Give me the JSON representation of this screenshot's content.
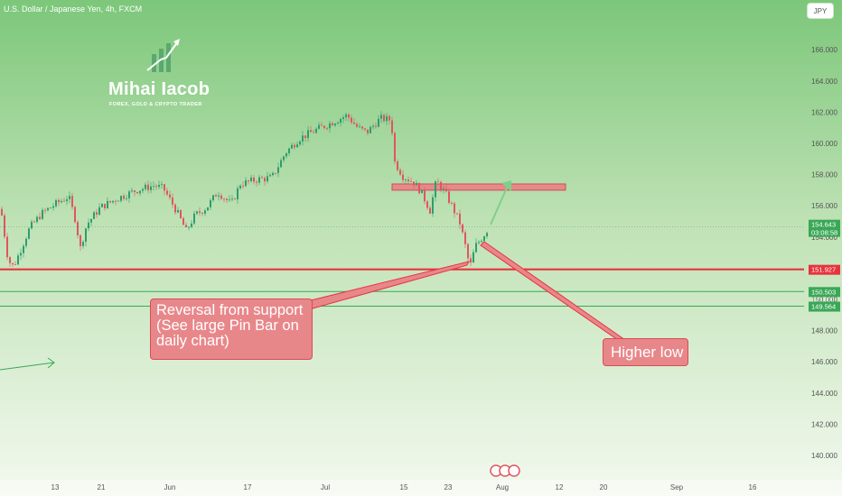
{
  "header": {
    "title": "U.S. Dollar / Japanese Yen, 4h, FXCM",
    "currency": "JPY"
  },
  "logo": {
    "name": "Mihai Iacob",
    "tagline": "FOREX, GOLD & CRYPTO TRADER"
  },
  "annotations": {
    "reversal": "Reversal from support\n(See large Pin Bar on\ndaily chart)",
    "higher_low": "Higher low"
  },
  "price_tags": {
    "current": "154.643",
    "countdown": "03:08:58",
    "support": "151.927",
    "level_a": "150.503",
    "level_a_hidden": "150.000",
    "level_b": "149.564"
  },
  "colors": {
    "candle_up": "#2e9d6f",
    "candle_down": "#e0565e",
    "support_line": "#e8333d",
    "level_line": "#3aa856",
    "zone_fill": "#e48a8a",
    "callout_fill": "#e8878a",
    "callout_border": "#d94c55",
    "bg_top": "#7cc77a",
    "bg_bottom": "#f3f9ef"
  },
  "chart_data": {
    "type": "candlestick",
    "title": "U.S. Dollar / Japanese Yen, 4h, FXCM",
    "y_axis": {
      "position": "right",
      "ticks": [
        140.0,
        142.0,
        144.0,
        146.0,
        148.0,
        150.0,
        152.0,
        154.0,
        156.0,
        158.0,
        160.0,
        162.0,
        164.0,
        166.0
      ],
      "tick_labels": [
        "140.000",
        "142.000",
        "144.000",
        "146.000",
        "148.000",
        "150.000",
        "152.000",
        "154.000",
        "156.000",
        "158.000",
        "160.000",
        "162.000",
        "164.000",
        "166.000"
      ],
      "ylim": [
        139.0,
        167.2
      ]
    },
    "x_axis": {
      "tick_labels": [
        "13",
        "21",
        "Jun",
        "17",
        "Jul",
        "15",
        "23",
        "Aug",
        "12",
        "20",
        "Sep",
        "16"
      ]
    },
    "price_path": [
      [
        0,
        155.8
      ],
      [
        8,
        152.5
      ],
      [
        14,
        152.1
      ],
      [
        22,
        153.2
      ],
      [
        32,
        154.6
      ],
      [
        45,
        155.5
      ],
      [
        60,
        156.1
      ],
      [
        75,
        156.6
      ],
      [
        82,
        155.2
      ],
      [
        88,
        153.3
      ],
      [
        95,
        154.8
      ],
      [
        110,
        155.9
      ],
      [
        130,
        156.5
      ],
      [
        150,
        157.0
      ],
      [
        170,
        157.3
      ],
      [
        180,
        157.1
      ],
      [
        195,
        155.6
      ],
      [
        205,
        154.4
      ],
      [
        215,
        155.4
      ],
      [
        228,
        155.9
      ],
      [
        240,
        156.9
      ],
      [
        255,
        156.1
      ],
      [
        265,
        157.4
      ],
      [
        285,
        157.7
      ],
      [
        300,
        157.8
      ],
      [
        315,
        159.4
      ],
      [
        330,
        160.3
      ],
      [
        350,
        160.9
      ],
      [
        365,
        161.3
      ],
      [
        383,
        161.8
      ],
      [
        395,
        161.0
      ],
      [
        405,
        160.7
      ],
      [
        420,
        161.6
      ],
      [
        432,
        161.5
      ],
      [
        436,
        158.8
      ],
      [
        445,
        157.9
      ],
      [
        457,
        157.5
      ],
      [
        465,
        156.9
      ],
      [
        475,
        155.7
      ],
      [
        482,
        157.6
      ],
      [
        492,
        156.8
      ],
      [
        500,
        155.9
      ],
      [
        508,
        154.9
      ],
      [
        515,
        153.2
      ],
      [
        519,
        152.0
      ],
      [
        525,
        153.4
      ],
      [
        533,
        154.0
      ],
      [
        540,
        154.6
      ]
    ],
    "levels": [
      {
        "price": 151.927,
        "label": "151.927",
        "role": "support"
      },
      {
        "price": 150.503,
        "label": "150.503"
      },
      {
        "price": 149.564,
        "label": "149.564"
      },
      {
        "price": 154.643,
        "label": "154.643",
        "role": "last price"
      }
    ],
    "resistance_zone": {
      "price_low": 157.0,
      "price_high": 157.4
    },
    "grid": false
  }
}
